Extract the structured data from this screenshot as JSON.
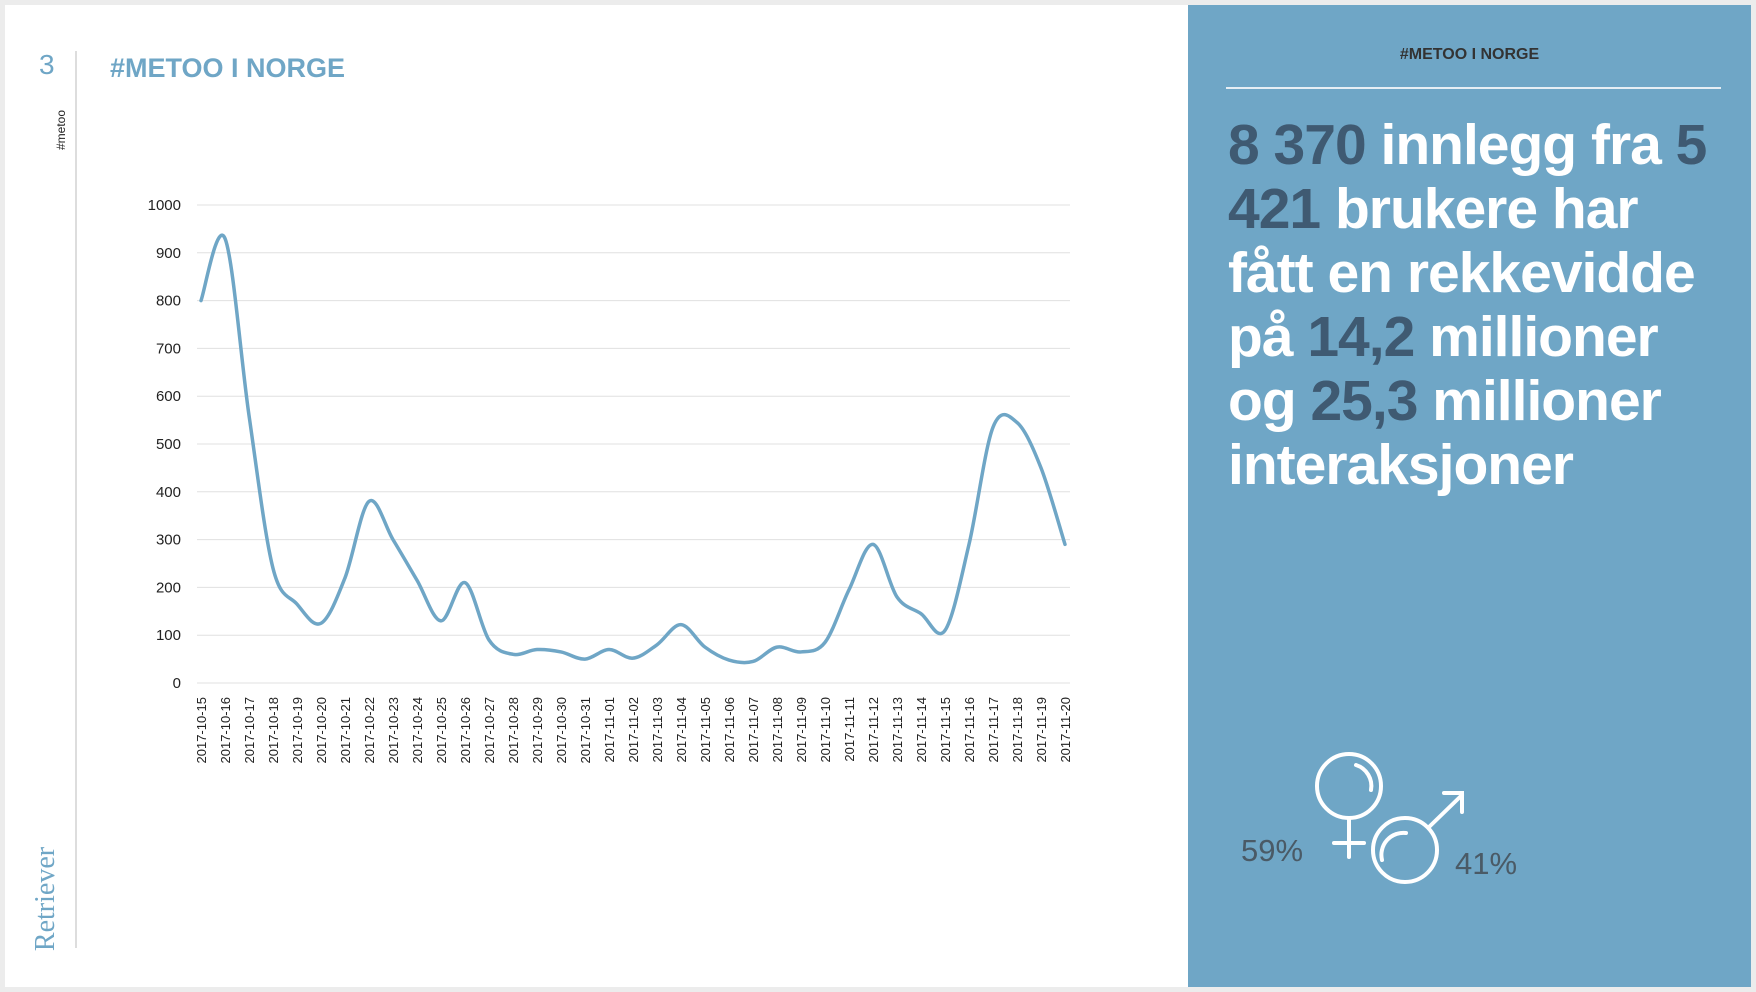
{
  "slide": {
    "page_number": "3",
    "side_tag": "#metoo",
    "title": "#METOO I NORGE",
    "logo_text": "Retriever"
  },
  "panel": {
    "header": "#METOO I NORGE",
    "statement": [
      {
        "text": "8 370",
        "highlight": true
      },
      {
        "text": " innlegg fra ",
        "highlight": false
      },
      {
        "text": "5 421",
        "highlight": true
      },
      {
        "text": " brukere har fått en rekkevidde på ",
        "highlight": false
      },
      {
        "text": "14,2",
        "highlight": true
      },
      {
        "text": " millioner og ",
        "highlight": false
      },
      {
        "text": "25,3",
        "highlight": true
      },
      {
        "text": " millioner interaksjoner",
        "highlight": false
      }
    ],
    "female_pct": "59%",
    "male_pct": "41%",
    "colors": {
      "panel": "#6fa6c6",
      "highlight": "#3f5a72"
    }
  },
  "chart_data": {
    "type": "line",
    "title": "",
    "xlabel": "",
    "ylabel": "",
    "ylim": [
      0,
      1000
    ],
    "yticks": [
      "0",
      "100",
      "200",
      "300",
      "400",
      "500",
      "600",
      "700",
      "800",
      "900",
      "1000"
    ],
    "grid": true,
    "color": "#6fa6c6",
    "categories": [
      "2017-10-15",
      "2017-10-16",
      "2017-10-17",
      "2017-10-18",
      "2017-10-19",
      "2017-10-20",
      "2017-10-21",
      "2017-10-22",
      "2017-10-23",
      "2017-10-24",
      "2017-10-25",
      "2017-10-26",
      "2017-10-27",
      "2017-10-28",
      "2017-10-29",
      "2017-10-30",
      "2017-10-31",
      "2017-11-01",
      "2017-11-02",
      "2017-11-03",
      "2017-11-04",
      "2017-11-05",
      "2017-11-06",
      "2017-11-07",
      "2017-11-08",
      "2017-11-09",
      "2017-11-10",
      "2017-11-11",
      "2017-11-12",
      "2017-11-13",
      "2017-11-14",
      "2017-11-15",
      "2017-11-16",
      "2017-11-17",
      "2017-11-18",
      "2017-11-19",
      "2017-11-20"
    ],
    "values": [
      800,
      930,
      560,
      240,
      165,
      125,
      220,
      380,
      300,
      215,
      130,
      210,
      90,
      60,
      70,
      65,
      50,
      70,
      52,
      80,
      122,
      75,
      48,
      45,
      75,
      65,
      85,
      195,
      290,
      180,
      145,
      110,
      290,
      535,
      545,
      450,
      290
    ]
  }
}
